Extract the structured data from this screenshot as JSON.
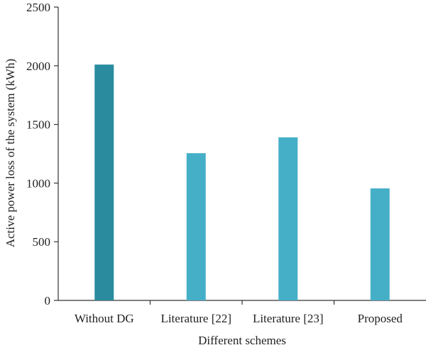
{
  "chart_data": {
    "type": "bar",
    "categories": [
      "Without DG",
      "Literature [22]",
      "Literature [23]",
      "Proposed"
    ],
    "values": [
      2010,
      1255,
      1390,
      955
    ],
    "bar_colors": [
      "#2a8b9e",
      "#46afc8",
      "#46afc8",
      "#46afc8"
    ],
    "xlabel": "Different schemes",
    "ylabel": "Active power loss of the system (kWh)",
    "ylim": [
      0,
      2500
    ],
    "yticks": [
      0,
      500,
      1000,
      1500,
      2000,
      2500
    ],
    "grid": false,
    "legend": "none"
  }
}
